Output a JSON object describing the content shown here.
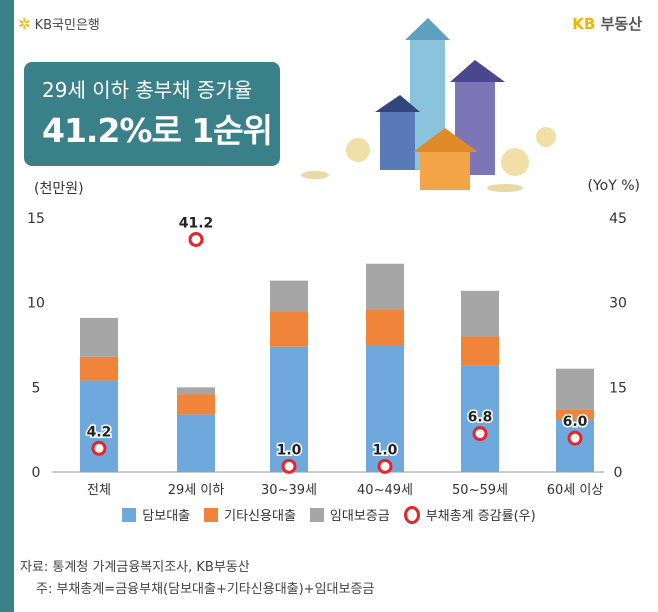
{
  "header": {
    "bank_logo": "KB국민은행",
    "realty_logo_kb": "KB",
    "realty_logo_text": "부동산"
  },
  "banner": {
    "line1": "29세 이하 총부채 증가율",
    "line2": "41.2%로 1순위"
  },
  "chart_data": {
    "type": "bar",
    "stacked": true,
    "ylabel": "(천만원)",
    "y2label": "(YoY %)",
    "ylim": [
      0,
      15
    ],
    "y2lim": [
      0,
      45
    ],
    "yticks": [
      "0",
      "5",
      "10",
      "15"
    ],
    "y2ticks": [
      "0",
      "15",
      "30",
      "45"
    ],
    "categories": [
      "전체",
      "29세 이하",
      "30~39세",
      "40~49세",
      "50~59세",
      "60세 이상"
    ],
    "series": [
      {
        "name": "담보대출",
        "color": "#6fa8dc",
        "values": [
          5.4,
          3.4,
          7.4,
          7.5,
          6.3,
          3.1
        ]
      },
      {
        "name": "기타신용대출",
        "color": "#f0843a",
        "values": [
          1.4,
          1.2,
          2.1,
          2.1,
          1.7,
          0.6
        ]
      },
      {
        "name": "임대보증금",
        "color": "#a6a6a6",
        "values": [
          2.3,
          0.4,
          1.8,
          2.7,
          2.7,
          2.4
        ]
      }
    ],
    "line_series": {
      "name": "부채총계 증감률(우)",
      "color": "#e8242a",
      "axis": "right",
      "values": [
        4.2,
        41.2,
        1.0,
        1.0,
        6.8,
        6.0
      ],
      "labels": [
        "4.2",
        "41.2",
        "1.0",
        "1.0",
        "6.8",
        "6.0"
      ]
    }
  },
  "source": "자료: 통계청 가계금융복지조사, KB부동산",
  "note": "주: 부채총계=금융부채(담보대출+기타신용대출)+임대보증금"
}
